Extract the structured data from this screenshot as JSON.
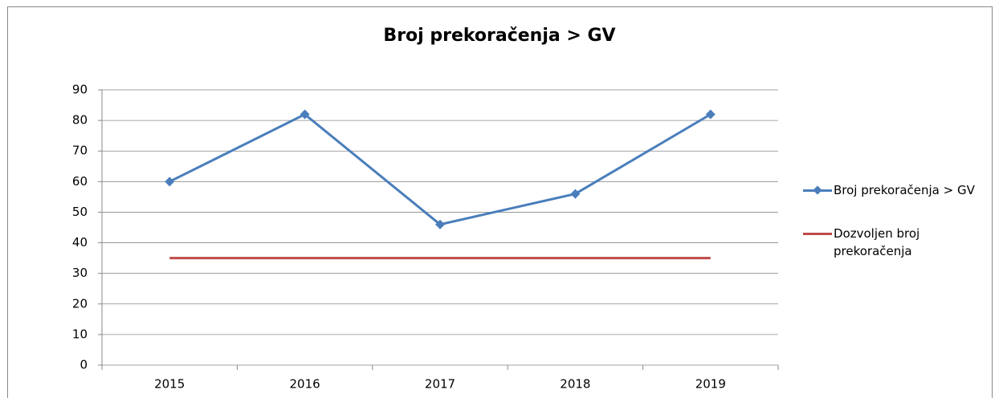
{
  "chart_data": {
    "type": "line",
    "title": "Broj prekoračenja > GV",
    "categories": [
      "2015",
      "2016",
      "2017",
      "2018",
      "2019"
    ],
    "series": [
      {
        "name": "Broj prekoračenja > GV",
        "color": "#4a7ebb",
        "marker": "diamond",
        "values": [
          60,
          82,
          46,
          56,
          82
        ]
      },
      {
        "name": "Dozvoljen broj prekoračenja",
        "color": "#be4b48",
        "values": [
          35,
          35,
          35,
          35,
          35
        ]
      }
    ],
    "ylim": [
      0,
      90
    ],
    "yticks": [
      0,
      10,
      20,
      30,
      40,
      50,
      60,
      70,
      80,
      90
    ],
    "grid": true,
    "legend": "right"
  }
}
